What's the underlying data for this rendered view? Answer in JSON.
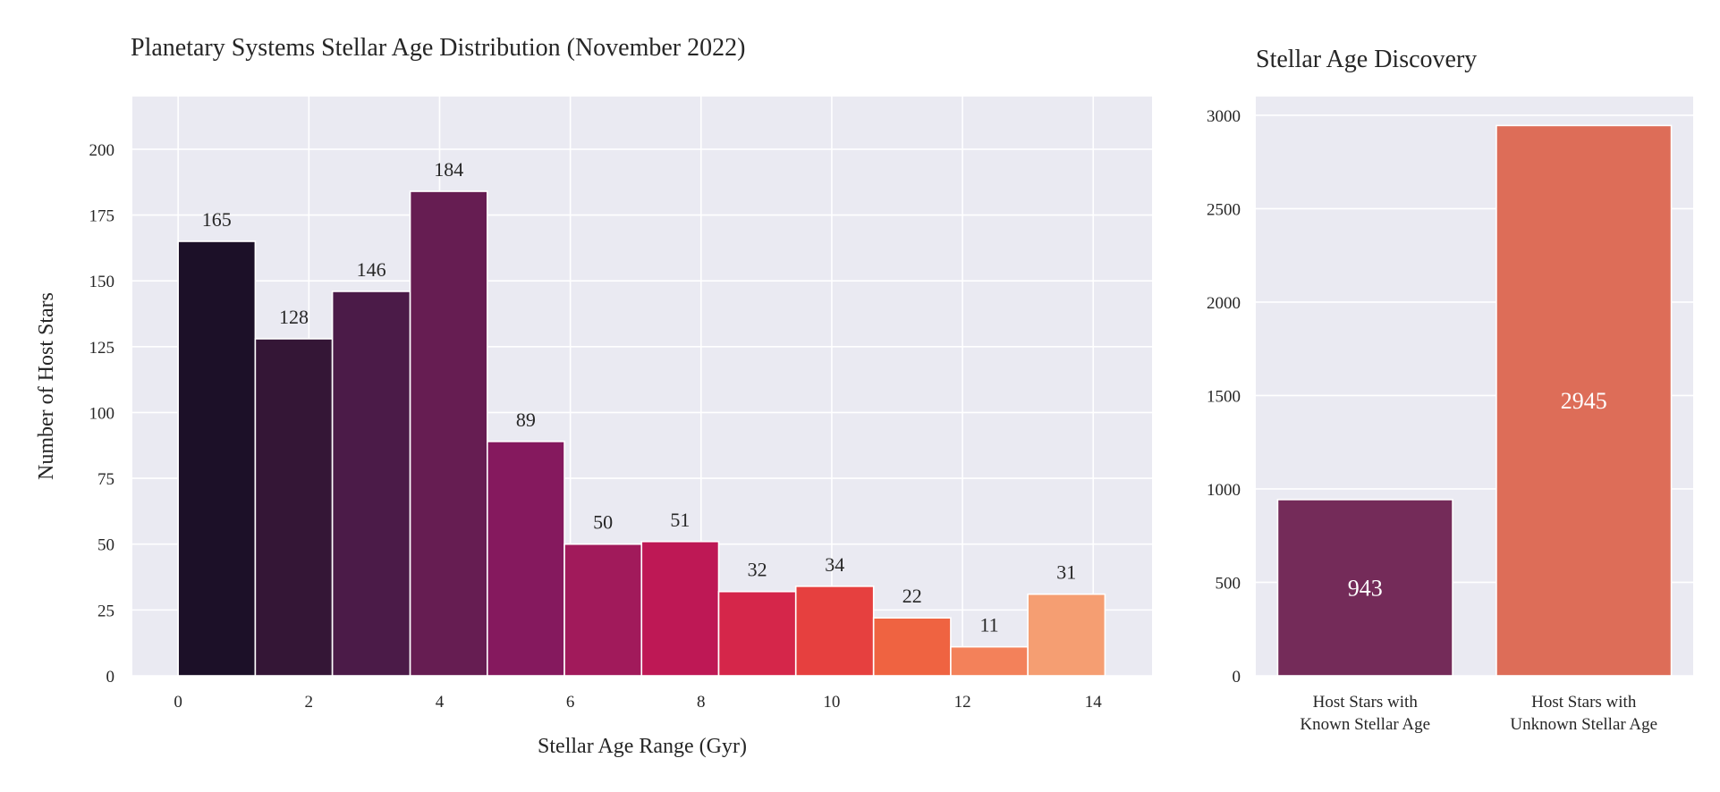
{
  "colors": {
    "panel_background": "#eaeaf2",
    "grid": "#ffffff",
    "text": "#262626"
  },
  "chart_data": [
    {
      "type": "bar",
      "title": "Planetary Systems Stellar Age Distribution (November 2022)",
      "xlabel": "Stellar Age Range (Gyr)",
      "ylabel": "Number of Host Stars",
      "xlim": [
        -0.7,
        14.9
      ],
      "ylim": [
        0,
        220
      ],
      "xticks": [
        0,
        2,
        4,
        6,
        8,
        10,
        12,
        14
      ],
      "yticks": [
        0,
        25,
        50,
        75,
        100,
        125,
        150,
        175,
        200
      ],
      "grid": true,
      "bin_edges": [
        0,
        1.18,
        2.36,
        3.55,
        4.73,
        5.91,
        7.09,
        8.27,
        9.45,
        10.64,
        11.82,
        13.0,
        14.18
      ],
      "values": [
        165,
        128,
        146,
        184,
        89,
        50,
        51,
        32,
        34,
        22,
        11,
        31
      ],
      "colors": [
        "#1c1028",
        "#341636",
        "#4b1b48",
        "#661d52",
        "#85195e",
        "#a11a5b",
        "#be1855",
        "#d5264a",
        "#e6403f",
        "#ef6341",
        "#f3815a",
        "#f59e72"
      ]
    },
    {
      "type": "bar",
      "title": "Stellar Age Discovery",
      "categories": [
        "Host Stars with\nKnown Stellar Age",
        "Host Stars with\nUnknown Stellar Age"
      ],
      "values": [
        943,
        2945
      ],
      "ylim": [
        0,
        3100
      ],
      "yticks": [
        0,
        500,
        1000,
        1500,
        2000,
        2500,
        3000
      ],
      "grid": true,
      "colors": [
        "#742b59",
        "#dd6d58"
      ]
    }
  ]
}
